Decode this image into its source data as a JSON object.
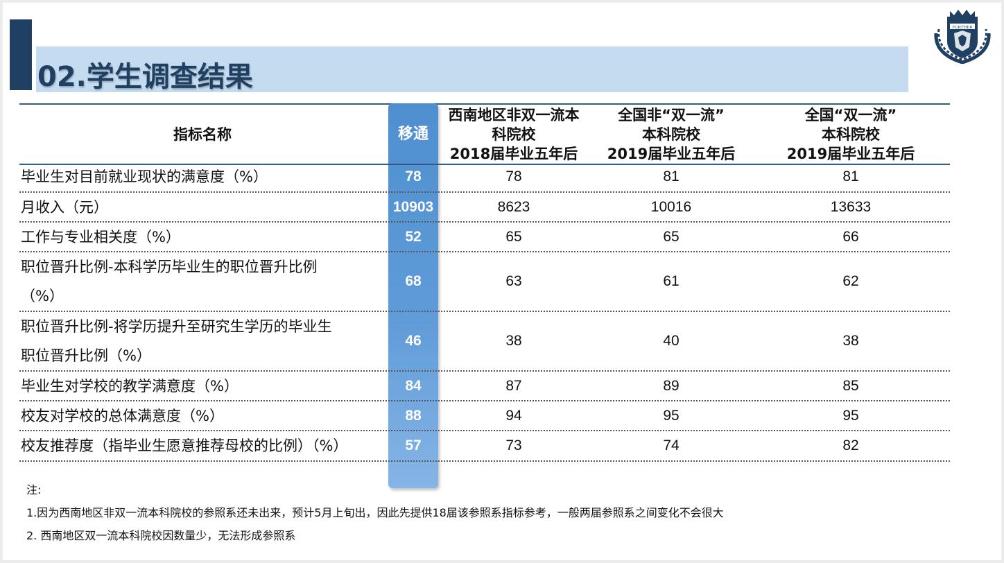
{
  "title": "02.学生调查结果",
  "logo": {
    "text": "FURTHER",
    "icon": "crest-logo-icon",
    "color": "#1f3f63"
  },
  "colors": {
    "accent_dark": "#1f3f63",
    "title_band": "#c5dcf0",
    "highlight_column": "#5b97d6"
  },
  "table": {
    "headers": {
      "indicator": "指标名称",
      "highlight": "移通",
      "col1": [
        "西南地区非双一流本",
        "科院校",
        "2018届毕业五年后"
      ],
      "col2": [
        "全国非“双一流”",
        "本科院校",
        "2019届毕业五年后"
      ],
      "col3": [
        "全国“双一流”",
        "本科院校",
        "2019届毕业五年后"
      ]
    },
    "rows": [
      {
        "name": [
          "毕业生对目前就业现状的满意度（%）"
        ],
        "highlight": "78",
        "c1": "78",
        "c2": "81",
        "c3": "81"
      },
      {
        "name": [
          "月收入（元）"
        ],
        "highlight": "10903",
        "c1": "8623",
        "c2": "10016",
        "c3": "13633"
      },
      {
        "name": [
          "工作与专业相关度（%）"
        ],
        "highlight": "52",
        "c1": "65",
        "c2": "65",
        "c3": "66"
      },
      {
        "name": [
          "职位晋升比例-本科学历毕业生的职位晋升比例",
          "（%）"
        ],
        "highlight": "68",
        "c1": "63",
        "c2": "61",
        "c3": "62"
      },
      {
        "name": [
          "职位晋升比例-将学历提升至研究生学历的毕业生",
          "职位晋升比例（%）"
        ],
        "highlight": "46",
        "c1": "38",
        "c2": "40",
        "c3": "38"
      },
      {
        "name": [
          "毕业生对学校的教学满意度（%）"
        ],
        "highlight": "84",
        "c1": "87",
        "c2": "89",
        "c3": "85"
      },
      {
        "name": [
          "校友对学校的总体满意度（%）"
        ],
        "highlight": "88",
        "c1": "94",
        "c2": "95",
        "c3": "95"
      },
      {
        "name": [
          "校友推荐度（指毕业生愿意推荐母校的比例）（%）"
        ],
        "highlight": "57",
        "c1": "73",
        "c2": "74",
        "c3": "82"
      }
    ]
  },
  "notes": {
    "label": "注:",
    "lines": [
      "1.因为西南地区非双一流本科院校的参照系还未出来，预计5月上旬出，因此先提供18届该参照系指标参考，一般两届参照系之间变化不会很大",
      "2. 西南地区双一流本科院校因数量少，无法形成参照系"
    ]
  }
}
